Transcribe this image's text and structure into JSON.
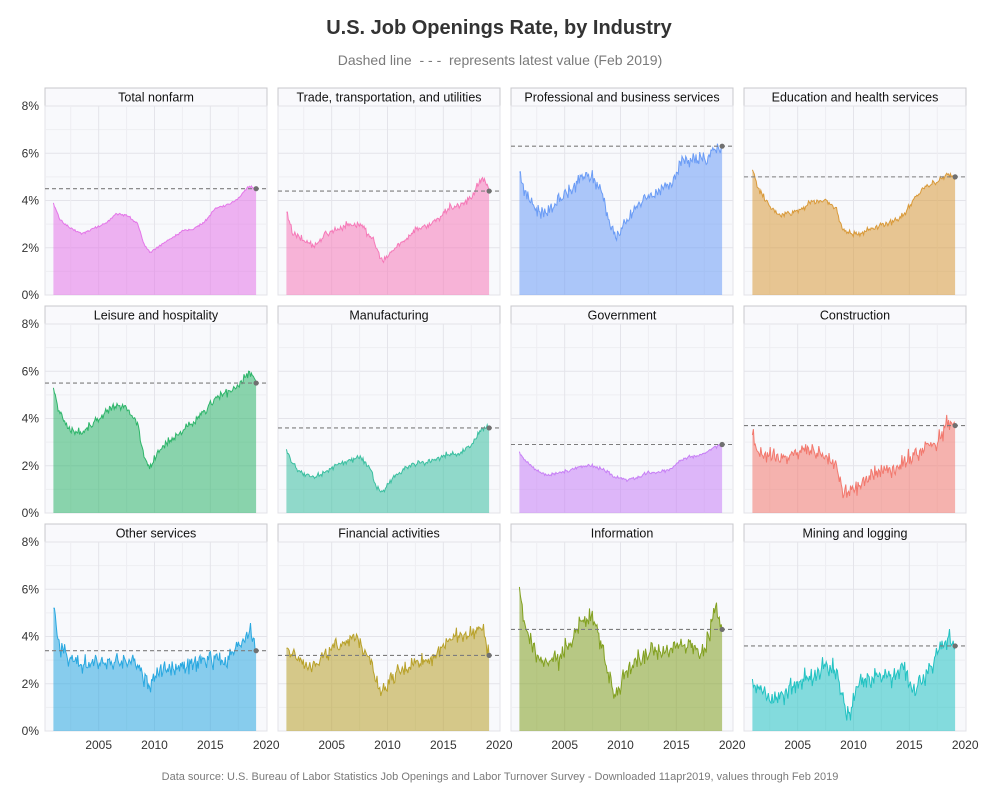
{
  "header": {
    "title": "U.S. Job Openings Rate, by Industry",
    "subtitle": "Dashed line  - - -  represents latest value (Feb 2019)"
  },
  "footer": {
    "caption": "Data source: U.S. Bureau of Labor Statistics Job Openings and Labor Turnover Survey - Downloaded 11apr2019, values through Feb 2019"
  },
  "chart_data": {
    "type": "area",
    "layout": "small-multiples-3x4",
    "x_range": [
      2000,
      2020
    ],
    "x_ticks": [
      2005,
      2010,
      2015,
      2020
    ],
    "y_range": [
      0,
      8
    ],
    "y_ticks": [
      0,
      2,
      4,
      6,
      8
    ],
    "y_tick_labels": [
      "0%",
      "2%",
      "4%",
      "6%",
      "8%"
    ],
    "grid": true,
    "reference_line": "dashed line at latest value (Feb 2019)",
    "panels": [
      {
        "name": "Total nonfarm",
        "color": "#e377e8",
        "latest": 4.5,
        "x": [
          2000.95,
          2001.5,
          2002.5,
          2003.5,
          2004.5,
          2005.5,
          2006.5,
          2007.5,
          2008.5,
          2009.0,
          2009.6,
          2010.5,
          2011.5,
          2012.5,
          2013.5,
          2014.5,
          2015.5,
          2016.5,
          2017.5,
          2018.5,
          2019.1
        ],
        "y": [
          3.9,
          3.2,
          2.8,
          2.6,
          2.8,
          3.0,
          3.4,
          3.4,
          3.0,
          2.2,
          1.8,
          2.1,
          2.4,
          2.7,
          2.8,
          3.1,
          3.7,
          3.8,
          4.1,
          4.6,
          4.5
        ]
      },
      {
        "name": "Trade, transportation, and utilities",
        "color": "#f57ab8",
        "latest": 4.4,
        "x": [
          2000.95,
          2001.5,
          2002.5,
          2003.5,
          2004.5,
          2005.5,
          2006.5,
          2007.5,
          2008.5,
          2009.0,
          2009.6,
          2010.5,
          2011.5,
          2012.5,
          2013.5,
          2014.5,
          2015.5,
          2016.5,
          2017.5,
          2018.5,
          2019.1
        ],
        "y": [
          3.5,
          2.6,
          2.3,
          2.1,
          2.6,
          2.8,
          3.0,
          3.0,
          2.5,
          2.0,
          1.4,
          1.9,
          2.3,
          2.8,
          2.9,
          3.2,
          3.7,
          3.8,
          4.1,
          5.0,
          4.4
        ]
      },
      {
        "name": "Professional and business services",
        "color": "#6b9cf5",
        "latest": 6.3,
        "x": [
          2000.95,
          2001.5,
          2002.5,
          2003.5,
          2004.5,
          2005.5,
          2006.5,
          2007.5,
          2008.5,
          2009.0,
          2009.6,
          2010.5,
          2011.5,
          2012.5,
          2013.5,
          2014.5,
          2015.5,
          2016.5,
          2017.5,
          2018.5,
          2019.1
        ],
        "y": [
          5.2,
          4.3,
          3.6,
          3.5,
          4.0,
          4.4,
          5.0,
          5.0,
          4.2,
          3.0,
          2.5,
          3.0,
          3.8,
          4.2,
          4.3,
          4.8,
          5.6,
          5.7,
          5.7,
          6.2,
          6.3
        ]
      },
      {
        "name": "Education and health services",
        "color": "#d99a3a",
        "latest": 5.0,
        "x": [
          2000.95,
          2001.5,
          2002.5,
          2003.5,
          2004.5,
          2005.5,
          2006.5,
          2007.5,
          2008.5,
          2009.0,
          2009.6,
          2010.5,
          2011.5,
          2012.5,
          2013.5,
          2014.5,
          2015.5,
          2016.5,
          2017.5,
          2018.5,
          2019.1
        ],
        "y": [
          5.3,
          4.5,
          3.7,
          3.4,
          3.5,
          3.7,
          4.0,
          4.0,
          3.6,
          2.8,
          2.6,
          2.6,
          2.8,
          3.0,
          3.1,
          3.4,
          4.1,
          4.6,
          4.8,
          5.1,
          5.0
        ]
      },
      {
        "name": "Leisure and hospitality",
        "color": "#2eb56a",
        "latest": 5.5,
        "x": [
          2000.95,
          2001.5,
          2002.5,
          2003.5,
          2004.5,
          2005.5,
          2006.5,
          2007.5,
          2008.5,
          2009.0,
          2009.6,
          2010.5,
          2011.5,
          2012.5,
          2013.5,
          2014.5,
          2015.5,
          2016.5,
          2017.5,
          2018.5,
          2019.1
        ],
        "y": [
          5.3,
          4.2,
          3.5,
          3.4,
          3.8,
          4.2,
          4.5,
          4.5,
          3.8,
          2.5,
          1.9,
          2.7,
          3.1,
          3.5,
          3.8,
          4.3,
          4.9,
          5.1,
          5.3,
          6.0,
          5.5
        ]
      },
      {
        "name": "Manufacturing",
        "color": "#3bbfa0",
        "latest": 3.6,
        "x": [
          2000.95,
          2001.5,
          2002.5,
          2003.5,
          2004.5,
          2005.5,
          2006.5,
          2007.5,
          2008.5,
          2009.0,
          2009.6,
          2010.5,
          2011.5,
          2012.5,
          2013.5,
          2014.5,
          2015.5,
          2016.5,
          2017.5,
          2018.5,
          2019.1
        ],
        "y": [
          2.7,
          2.1,
          1.6,
          1.5,
          1.8,
          2.0,
          2.2,
          2.4,
          1.9,
          1.1,
          0.9,
          1.5,
          1.9,
          2.1,
          2.1,
          2.3,
          2.5,
          2.5,
          2.9,
          3.6,
          3.6
        ]
      },
      {
        "name": "Government",
        "color": "#c780f5",
        "latest": 2.9,
        "x": [
          2000.95,
          2001.5,
          2002.5,
          2003.5,
          2004.5,
          2005.5,
          2006.5,
          2007.5,
          2008.5,
          2009.0,
          2009.6,
          2010.5,
          2011.5,
          2012.5,
          2013.5,
          2014.5,
          2015.5,
          2016.5,
          2017.5,
          2018.5,
          2019.1
        ],
        "y": [
          2.6,
          2.2,
          1.8,
          1.6,
          1.7,
          1.8,
          2.0,
          2.0,
          1.8,
          1.7,
          1.5,
          1.4,
          1.5,
          1.7,
          1.7,
          1.9,
          2.3,
          2.4,
          2.5,
          2.8,
          2.9
        ]
      },
      {
        "name": "Construction",
        "color": "#f2786d",
        "latest": 3.7,
        "x": [
          2000.95,
          2001.5,
          2002.5,
          2003.5,
          2004.5,
          2005.5,
          2006.5,
          2007.5,
          2008.5,
          2009.0,
          2009.6,
          2010.5,
          2011.5,
          2012.5,
          2013.5,
          2014.5,
          2015.5,
          2016.5,
          2017.5,
          2018.5,
          2019.1
        ],
        "y": [
          3.3,
          2.6,
          2.4,
          2.2,
          2.5,
          2.6,
          2.6,
          2.3,
          1.9,
          1.0,
          0.9,
          1.2,
          1.6,
          1.8,
          1.9,
          2.2,
          2.4,
          2.8,
          3.0,
          3.9,
          3.7
        ]
      },
      {
        "name": "Other services",
        "color": "#29a8e0",
        "latest": 3.4,
        "x": [
          2000.95,
          2001.5,
          2002.5,
          2003.5,
          2004.5,
          2005.5,
          2006.5,
          2007.5,
          2008.5,
          2009.0,
          2009.6,
          2010.5,
          2011.5,
          2012.5,
          2013.5,
          2014.5,
          2015.5,
          2016.5,
          2017.5,
          2018.5,
          2019.1
        ],
        "y": [
          5.2,
          3.6,
          3.0,
          2.8,
          2.8,
          3.0,
          2.9,
          3.0,
          2.9,
          2.4,
          2.0,
          2.6,
          2.6,
          2.8,
          2.8,
          3.0,
          3.1,
          3.0,
          3.6,
          4.3,
          3.4
        ]
      },
      {
        "name": "Financial activities",
        "color": "#b8a12a",
        "latest": 3.2,
        "x": [
          2000.95,
          2001.5,
          2002.5,
          2003.5,
          2004.5,
          2005.5,
          2006.5,
          2007.5,
          2008.5,
          2009.0,
          2009.6,
          2010.5,
          2011.5,
          2012.5,
          2013.5,
          2014.5,
          2015.5,
          2016.5,
          2017.5,
          2018.5,
          2019.1
        ],
        "y": [
          3.5,
          3.2,
          2.9,
          2.9,
          3.2,
          3.6,
          3.9,
          3.8,
          3.1,
          2.0,
          1.7,
          2.3,
          2.6,
          2.9,
          3.0,
          3.3,
          3.9,
          4.0,
          4.1,
          4.4,
          3.2
        ]
      },
      {
        "name": "Information",
        "color": "#82a020",
        "latest": 4.3,
        "x": [
          2000.95,
          2001.5,
          2002.5,
          2003.5,
          2004.5,
          2005.5,
          2006.5,
          2007.5,
          2008.5,
          2009.0,
          2009.6,
          2010.5,
          2011.5,
          2012.5,
          2013.5,
          2014.5,
          2015.5,
          2016.5,
          2017.5,
          2018.5,
          2019.1
        ],
        "y": [
          6.1,
          4.2,
          3.0,
          2.8,
          3.0,
          3.8,
          4.7,
          4.8,
          3.3,
          2.2,
          1.6,
          2.6,
          3.0,
          3.3,
          3.4,
          3.6,
          3.8,
          3.5,
          3.3,
          5.2,
          4.3
        ]
      },
      {
        "name": "Mining and logging",
        "color": "#22c2c2",
        "latest": 3.6,
        "x": [
          2000.95,
          2001.5,
          2002.5,
          2003.5,
          2004.5,
          2005.5,
          2006.5,
          2007.5,
          2008.5,
          2009.0,
          2009.6,
          2010.5,
          2011.5,
          2012.5,
          2013.5,
          2014.5,
          2015.5,
          2016.5,
          2017.5,
          2018.5,
          2019.1
        ],
        "y": [
          2.2,
          1.8,
          1.4,
          1.5,
          1.9,
          2.2,
          2.3,
          2.7,
          2.6,
          1.4,
          0.7,
          1.9,
          2.3,
          2.4,
          2.3,
          2.6,
          1.9,
          2.3,
          3.3,
          4.0,
          3.6
        ]
      }
    ]
  }
}
